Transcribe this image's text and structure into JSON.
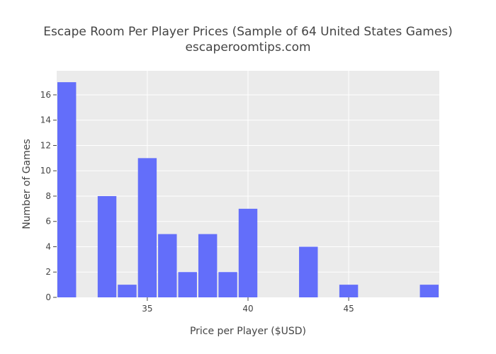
{
  "chart_data": {
    "type": "bar",
    "title": "Escape Room Per Player Prices (Sample of 64 United States Games)",
    "subtitle": "escaperoomtips.com",
    "xlabel": "Price per Player ($USD)",
    "ylabel": "Number of Games",
    "bin_width": 1,
    "x": [
      31,
      32,
      33,
      34,
      35,
      36,
      37,
      38,
      39,
      40,
      41,
      42,
      43,
      44,
      45,
      46,
      47,
      48,
      49
    ],
    "values": [
      17,
      0,
      8,
      1,
      11,
      5,
      2,
      5,
      2,
      7,
      0,
      0,
      4,
      0,
      1,
      0,
      0,
      0,
      1
    ],
    "xlim": [
      30.5,
      49.5
    ],
    "ylim": [
      0,
      17.9
    ],
    "xticks": [
      35,
      40,
      45
    ],
    "yticks": [
      0,
      2,
      4,
      6,
      8,
      10,
      12,
      14,
      16
    ],
    "grid": true,
    "legend": "none",
    "bar_color": "#636efa",
    "plot_background": "#ebebeb",
    "grid_color": "#ffffff"
  }
}
